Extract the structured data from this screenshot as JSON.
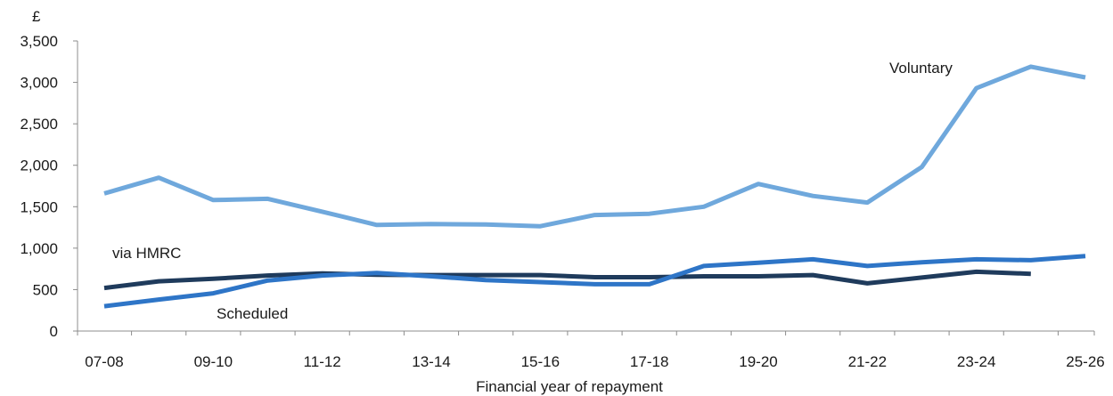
{
  "chart_data": {
    "type": "line",
    "title": "",
    "unit_label": "£",
    "xlabel": "Financial year of repayment",
    "ylabel": "",
    "ylim": [
      0,
      3500
    ],
    "yticks": [
      0,
      500,
      1000,
      1500,
      2000,
      2500,
      3000,
      3500
    ],
    "ytick_labels": [
      "0",
      "500",
      "1,000",
      "1,500",
      "2,000",
      "2,500",
      "3,000",
      "3,500"
    ],
    "categories": [
      "07-08",
      "08-09",
      "09-10",
      "10-11",
      "11-12",
      "12-13",
      "13-14",
      "14-15",
      "15-16",
      "16-17",
      "17-18",
      "18-19",
      "19-20",
      "20-21",
      "21-22",
      "22-23",
      "23-24",
      "24-25",
      "25-26"
    ],
    "xtick_labels_shown": [
      "07-08",
      "09-10",
      "11-12",
      "13-14",
      "15-16",
      "17-18",
      "19-20",
      "21-22",
      "23-24",
      "25-26"
    ],
    "grid": false,
    "legend": "none",
    "series": [
      {
        "name": "Voluntary",
        "color": "#6fa8dc",
        "values": [
          1660,
          1850,
          1580,
          1595,
          1440,
          1280,
          1290,
          1285,
          1265,
          1400,
          1415,
          1500,
          1775,
          1630,
          1550,
          1980,
          2930,
          3190,
          3060
        ]
      },
      {
        "name": "via HMRC",
        "color": "#1f3b5c",
        "values": [
          520,
          600,
          630,
          670,
          695,
          680,
          675,
          675,
          675,
          650,
          650,
          660,
          660,
          675,
          575,
          645,
          715,
          690,
          null
        ]
      },
      {
        "name": "Scheduled",
        "color": "#2e75c7",
        "values": [
          300,
          380,
          455,
          610,
          670,
          700,
          660,
          615,
          590,
          565,
          565,
          785,
          825,
          865,
          785,
          830,
          865,
          855,
          905
        ]
      }
    ]
  }
}
